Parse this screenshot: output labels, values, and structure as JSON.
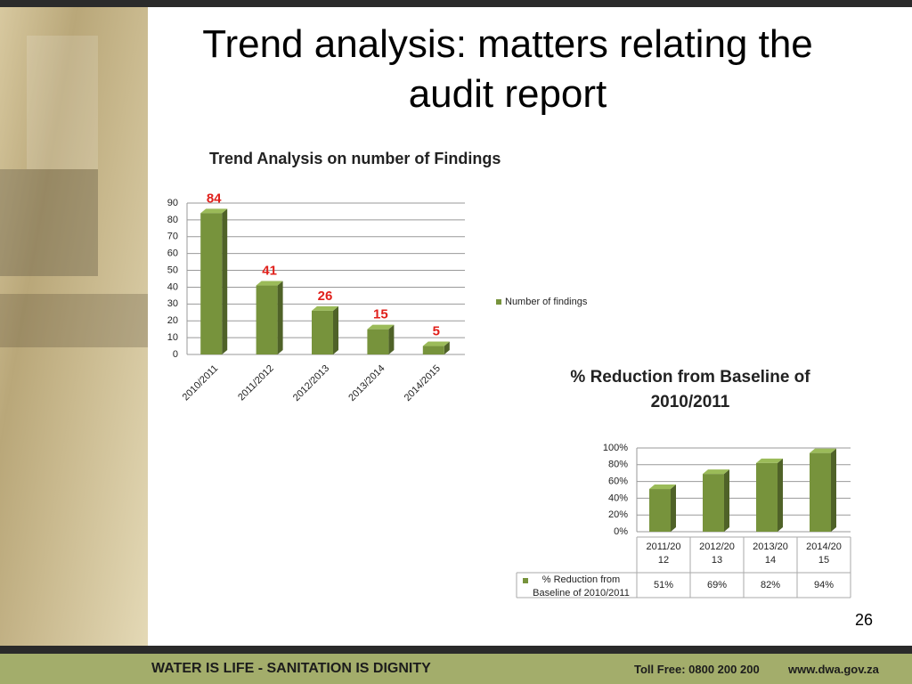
{
  "slide": {
    "title": "Trend analysis: matters relating the audit report",
    "page_number": "26",
    "footer": {
      "motto": "WATER IS LIFE - SANITATION IS DIGNITY",
      "toll_free": "Toll Free: 0800 200 200",
      "website": "www.dwa.gov.za"
    }
  },
  "chart_data": [
    {
      "type": "bar",
      "title": "Trend Analysis on number of Findings",
      "categories": [
        "2010/2011",
        "2011/2012",
        "2012/2013",
        "2013/2014",
        "2014/2015"
      ],
      "series": [
        {
          "name": "Number of findings",
          "color": "#77933c",
          "values": [
            84,
            41,
            26,
            15,
            5
          ]
        }
      ],
      "ylim": [
        0,
        90
      ],
      "yticks": [
        0,
        10,
        20,
        30,
        40,
        50,
        60,
        70,
        80,
        90
      ],
      "grid": true,
      "legend": "right",
      "data_labels": true
    },
    {
      "type": "bar",
      "title": "% Reduction from Baseline of 2010/2011",
      "categories": [
        "2011/2012",
        "2012/2013",
        "2013/2014",
        "2014/2015"
      ],
      "series": [
        {
          "name": "% Reduction from Baseline of 2010/2011",
          "color": "#77933c",
          "values": [
            51,
            69,
            82,
            94
          ],
          "value_labels": [
            "51%",
            "69%",
            "82%",
            "94%"
          ]
        }
      ],
      "ylim": [
        0,
        100
      ],
      "yticks": [
        {
          "value": 0,
          "label": "0%"
        },
        {
          "value": 20,
          "label": "20%"
        },
        {
          "value": 40,
          "label": "40%"
        },
        {
          "value": 60,
          "label": "60%"
        },
        {
          "value": 80,
          "label": "80%"
        },
        {
          "value": 100,
          "label": "100%"
        }
      ],
      "grid": true,
      "legend": "table",
      "data_table": true
    }
  ]
}
